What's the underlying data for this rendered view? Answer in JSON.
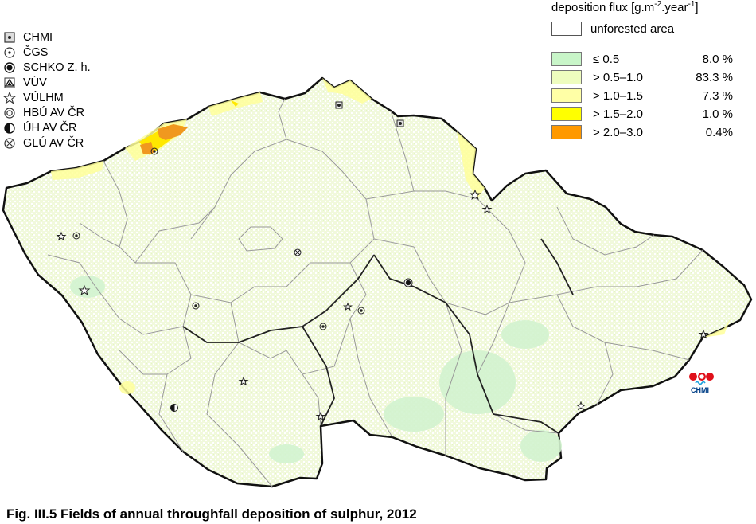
{
  "station_legend": [
    {
      "label": "CHMI",
      "icon": "square-dot-icon"
    },
    {
      "label": "ČGS",
      "icon": "circle-dot-icon"
    },
    {
      "label": "SCHKO Z. h.",
      "icon": "filled-dot-circle-icon"
    },
    {
      "label": "VÚV",
      "icon": "triangle-in-square-icon"
    },
    {
      "label": "VÚLHM",
      "icon": "star-icon"
    },
    {
      "label": "HBÚ AV ČR",
      "icon": "double-circle-icon"
    },
    {
      "label": "ÚH AV ČR",
      "icon": "half-filled-circle-icon"
    },
    {
      "label": "GLÚ AV ČR",
      "icon": "crossed-circle-icon"
    }
  ],
  "deposition_legend": {
    "title_main": "deposition flux [g.m",
    "title_sup1": "-2",
    "title_mid": ".year",
    "title_sup2": "-1",
    "title_end": "]",
    "unforested_label": "unforested area",
    "classes": [
      {
        "label": "≤ 0.5",
        "percent": "8.0 %",
        "color": "#c8f5c8"
      },
      {
        "label": "> 0.5–1.0",
        "percent": "83.3 %",
        "color": "#eefcbe"
      },
      {
        "label": "> 1.0–1.5",
        "percent": "7.3 %",
        "color": "#ffffa6"
      },
      {
        "label": "> 1.5–2.0",
        "percent": "1.0 %",
        "color": "#ffff00"
      },
      {
        "label": "> 2.0–3.0",
        "percent": "0.4%",
        "color": "#ff9900"
      }
    ]
  },
  "caption": "Fig. III.5  Fields of annual throughfall deposition of sulphur, 2012",
  "logo_text": "CHMI",
  "colors": {
    "border": "#111111",
    "inner_border": "#999999",
    "fill_main": "#f4fbe2",
    "fill_green": "#d6f5d2",
    "fill_yellow": "#ffff8a",
    "fill_orange": "#f29b22"
  }
}
